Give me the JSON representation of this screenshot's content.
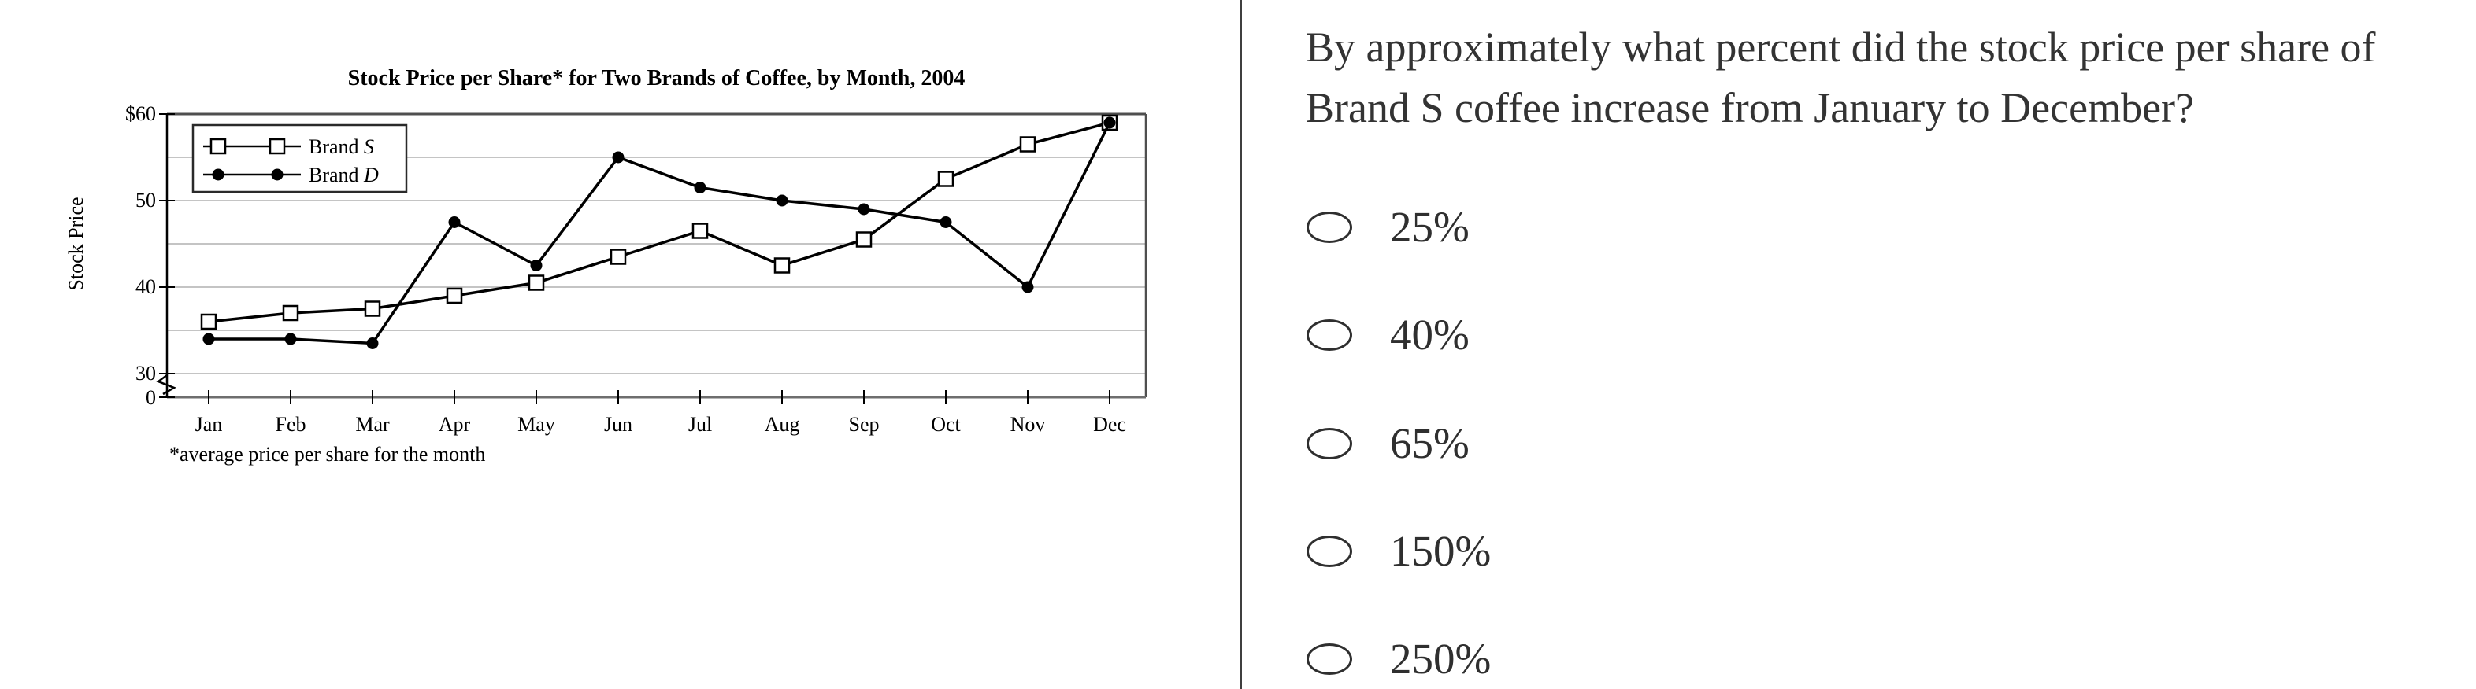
{
  "chart_data": {
    "type": "line",
    "title": "Stock Price per Share* for Two Brands of Coffee, by Month, 2004",
    "ylabel": "Stock Price",
    "footnote": "*average price per share for the month",
    "categories": [
      "Jan",
      "Feb",
      "Mar",
      "Apr",
      "May",
      "Jun",
      "Jul",
      "Aug",
      "Sep",
      "Oct",
      "Nov",
      "Dec"
    ],
    "y_tick_labels": [
      "$60",
      "50",
      "40",
      "30",
      "0"
    ],
    "ylim": [
      30,
      60
    ],
    "y_axis_break": true,
    "grid": true,
    "legend_position": "top-left-inside",
    "series": [
      {
        "name": "Brand S",
        "marker": "open-square",
        "values": [
          36,
          37,
          37.5,
          39,
          40.5,
          43.5,
          46.5,
          42.5,
          45.5,
          52.5,
          56.5,
          59
        ]
      },
      {
        "name": "Brand D",
        "marker": "filled-circle",
        "values": [
          34,
          34,
          33.5,
          47.5,
          42.5,
          55,
          51.5,
          50,
          49,
          47.5,
          40,
          59
        ]
      }
    ]
  },
  "question": {
    "line1": "By approximately what percent did the stock price per share of",
    "line2": "Brand S coffee increase from January to December?"
  },
  "options": [
    "25%",
    "40%",
    "65%",
    "150%",
    "250%"
  ],
  "colors": {
    "chart_line": "#000000",
    "gridline": "#b0b0b0",
    "frame": "#4f4f4f",
    "axis": "#000000",
    "divider": "#3f3f3f",
    "text": "#333333",
    "radio_border": "#2f2f2f"
  }
}
